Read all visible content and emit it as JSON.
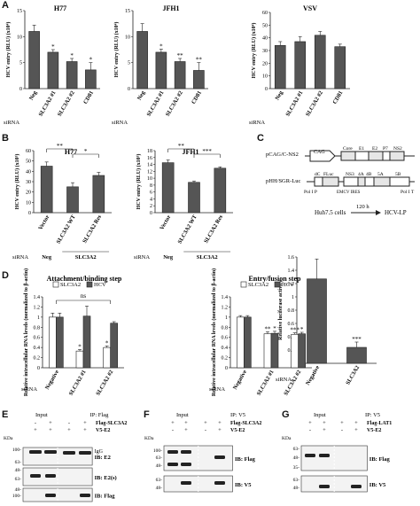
{
  "panel_letters": [
    "A",
    "B",
    "C",
    "D",
    "E",
    "F",
    "G"
  ],
  "chart_data": [
    {
      "id": "A1",
      "type": "bar",
      "title": "H77",
      "ylabel": "HCV entry (RLU) (x10⁴)",
      "ylim": [
        0,
        15
      ],
      "yticks": [
        0,
        5,
        10,
        15
      ],
      "siRNA_label": "siRNA",
      "categories": [
        "Neg",
        "SLC3A2 #1",
        "SLC3A2 #2",
        "CD81"
      ],
      "values": [
        11,
        7,
        5.2,
        3.6
      ],
      "errors": [
        1.2,
        0.5,
        0.6,
        1.4
      ],
      "stars": [
        "",
        "*",
        "*",
        "*"
      ]
    },
    {
      "id": "A2",
      "type": "bar",
      "title": "JFH1",
      "ylabel": "HCV entry (RLU) (x10⁴)",
      "ylim": [
        0,
        15
      ],
      "yticks": [
        0,
        5,
        10,
        15
      ],
      "siRNA_label": "siRNA",
      "categories": [
        "Neg",
        "SLC3A2 #1",
        "SLC3A2 #2",
        "CD81"
      ],
      "values": [
        11,
        7,
        5.2,
        3.5
      ],
      "errors": [
        1.5,
        0.6,
        0.6,
        1.5
      ],
      "stars": [
        "",
        "*",
        "**",
        "**"
      ]
    },
    {
      "id": "A3",
      "type": "bar",
      "title": "VSV",
      "ylabel": "HCV entry (RLU) (x10⁴)",
      "ylim": [
        0,
        60
      ],
      "yticks": [
        0,
        10,
        20,
        30,
        40,
        50,
        60
      ],
      "siRNA_label": "siRNA",
      "categories": [
        "Neg",
        "SLC3A2 #1",
        "SLC3A2 #2",
        "CD81"
      ],
      "values": [
        34,
        37,
        42,
        33
      ],
      "errors": [
        3,
        4,
        3,
        2
      ],
      "stars": [
        "",
        "",
        "",
        ""
      ]
    },
    {
      "id": "B1",
      "type": "bar",
      "title": "H77",
      "ylabel": "HCV entry (RLU) (x10³)",
      "ylim": [
        0,
        60
      ],
      "yticks": [
        0,
        10,
        20,
        30,
        40,
        50,
        60
      ],
      "siRNA_label": "siRNA",
      "categories": [
        "Vector",
        "SLC3A2 WT",
        "SLC3A2 Res"
      ],
      "values": [
        45,
        25,
        36
      ],
      "errors": [
        4,
        4,
        3
      ],
      "siRNA_values": [
        "Neg",
        "SLC3A2"
      ],
      "sig": [
        {
          "from": 0,
          "to": 1,
          "label": "**"
        },
        {
          "from": 1,
          "to": 2,
          "label": "*"
        }
      ]
    },
    {
      "id": "B2",
      "type": "bar",
      "title": "JFH1",
      "ylabel": "HCV entry (RLU) (x10³)",
      "ylim": [
        0,
        18
      ],
      "yticks": [
        0,
        2,
        4,
        6,
        8,
        10,
        12,
        14,
        16,
        18
      ],
      "siRNA_label": "siRNA",
      "categories": [
        "Vector",
        "SLC3A2 WT",
        "SLC3A2 Res"
      ],
      "values": [
        14.5,
        8.8,
        12.9
      ],
      "errors": [
        0.8,
        0.4,
        0.4
      ],
      "siRNA_values": [
        "Neg",
        "SLC3A2"
      ],
      "sig": [
        {
          "from": 0,
          "to": 1,
          "label": "**"
        },
        {
          "from": 1,
          "to": 2,
          "label": "***"
        }
      ]
    },
    {
      "id": "C",
      "type": "bar",
      "ylabel": "Relative luciferase activity",
      "ylim": [
        0,
        1.6
      ],
      "yticks": [
        0,
        0.2,
        0.4,
        0.6,
        0.8,
        1,
        1.2,
        1.4,
        1.6
      ],
      "siRNA_label": "siRNA",
      "categories": [
        "Negative",
        "SLC3A2"
      ],
      "values": [
        1.27,
        0.24
      ],
      "errors": [
        0.3,
        0.08
      ],
      "stars": [
        "",
        "***"
      ]
    },
    {
      "id": "D1",
      "type": "bar",
      "title": "Attachment/binding step",
      "ylabel": "Relative intracellular RNA levels (normalized to β-actin)",
      "ylim": [
        0,
        1.4
      ],
      "yticks": [
        0,
        0.2,
        0.4,
        0.6,
        0.8,
        1,
        1.2,
        1.4
      ],
      "siRNA_label": "siRNA",
      "categories": [
        "Negative",
        "SLC3A2 #1",
        "SLC3A2 #2"
      ],
      "series": [
        {
          "name": "SLC3A2",
          "values": [
            1.0,
            0.33,
            0.4
          ],
          "errors": [
            0.08,
            0.03,
            0.03
          ],
          "stars": [
            "",
            "*",
            "*"
          ]
        },
        {
          "name": "HCV",
          "values": [
            1.0,
            1.02,
            0.88
          ],
          "errors": [
            0.08,
            0.2,
            0.03
          ],
          "stars": [
            "",
            "",
            ""
          ]
        }
      ],
      "ns": "ns"
    },
    {
      "id": "D2",
      "type": "bar",
      "title": "Entry/fusion step",
      "ylabel": "Relative intracellular RNA levels (normalized to β-actin)",
      "ylim": [
        0,
        1.4
      ],
      "yticks": [
        0,
        0.2,
        0.4,
        0.6,
        0.8,
        1,
        1.2,
        1.4
      ],
      "siRNA_label": "siRNA",
      "categories": [
        "Negative",
        "SLC3A2 #1",
        "SLC3A2 #2"
      ],
      "series": [
        {
          "name": "SLC3A2",
          "values": [
            1.0,
            0.67,
            0.66
          ],
          "errors": [
            0.03,
            0.04,
            0.03
          ],
          "stars": [
            "",
            "**",
            "***"
          ]
        },
        {
          "name": "HCV",
          "values": [
            1.0,
            0.68,
            0.67
          ],
          "errors": [
            0.03,
            0.04,
            0.03
          ],
          "stars": [
            "",
            "*",
            "*"
          ]
        }
      ]
    }
  ],
  "diagram_c": {
    "construct1": "pCAG/C-NS2",
    "cag": "CAG",
    "seg1": [
      "Core",
      "E1",
      "E2",
      "P7",
      "NS2"
    ],
    "construct2": "pHH/SGR-Luc",
    "seg2": [
      "dC",
      "FLuc",
      "NS3",
      "4A",
      "4B",
      "5A",
      "5B"
    ],
    "emcv": "EMCV IRES",
    "pol1p": "Pol I P",
    "pol1t": "Pol I T",
    "cells": "Huh7.5 cells",
    "time": "120 h",
    "product": "HCV-LP"
  },
  "blots": {
    "E": {
      "input": "Input",
      "ip": "IP: Flag",
      "rows": [
        [
          "Flag-SLC3A2",
          "-",
          "+",
          "-",
          "+"
        ],
        [
          "V5-E2",
          "+",
          "+",
          "+",
          "+"
        ]
      ],
      "kda": "KDa",
      "markers": [
        "100-",
        "63-",
        "48-",
        "63-",
        "48-",
        "100-"
      ],
      "igg": "IgG",
      "ib": [
        "IB: E2",
        "IB: E2(s)",
        "IB: Flag"
      ]
    },
    "F": {
      "input": "Input",
      "ip": "IP: V5",
      "rows": [
        [
          "Flag-SLC3A2",
          "+",
          "+",
          "+",
          "+"
        ],
        [
          "V5-E2",
          "-",
          "+",
          "-",
          "+"
        ]
      ],
      "kda": "KDa",
      "markers": [
        "100-",
        "63-",
        "48-",
        "63-",
        "48-"
      ],
      "ib": [
        "IB: Flag",
        "IB: V5"
      ]
    },
    "G": {
      "input": "Input",
      "ip": "IP: V5",
      "rows": [
        [
          "Flag-LAT1",
          "+",
          "+",
          "+",
          "+"
        ],
        [
          "V5-E2",
          "-",
          "+",
          "-",
          "+"
        ]
      ],
      "kda": "KDa",
      "markers": [
        "63-",
        "48-",
        "35-",
        "63-",
        "48-"
      ],
      "ib": [
        "IB: Flag",
        "IB: V5"
      ]
    }
  }
}
